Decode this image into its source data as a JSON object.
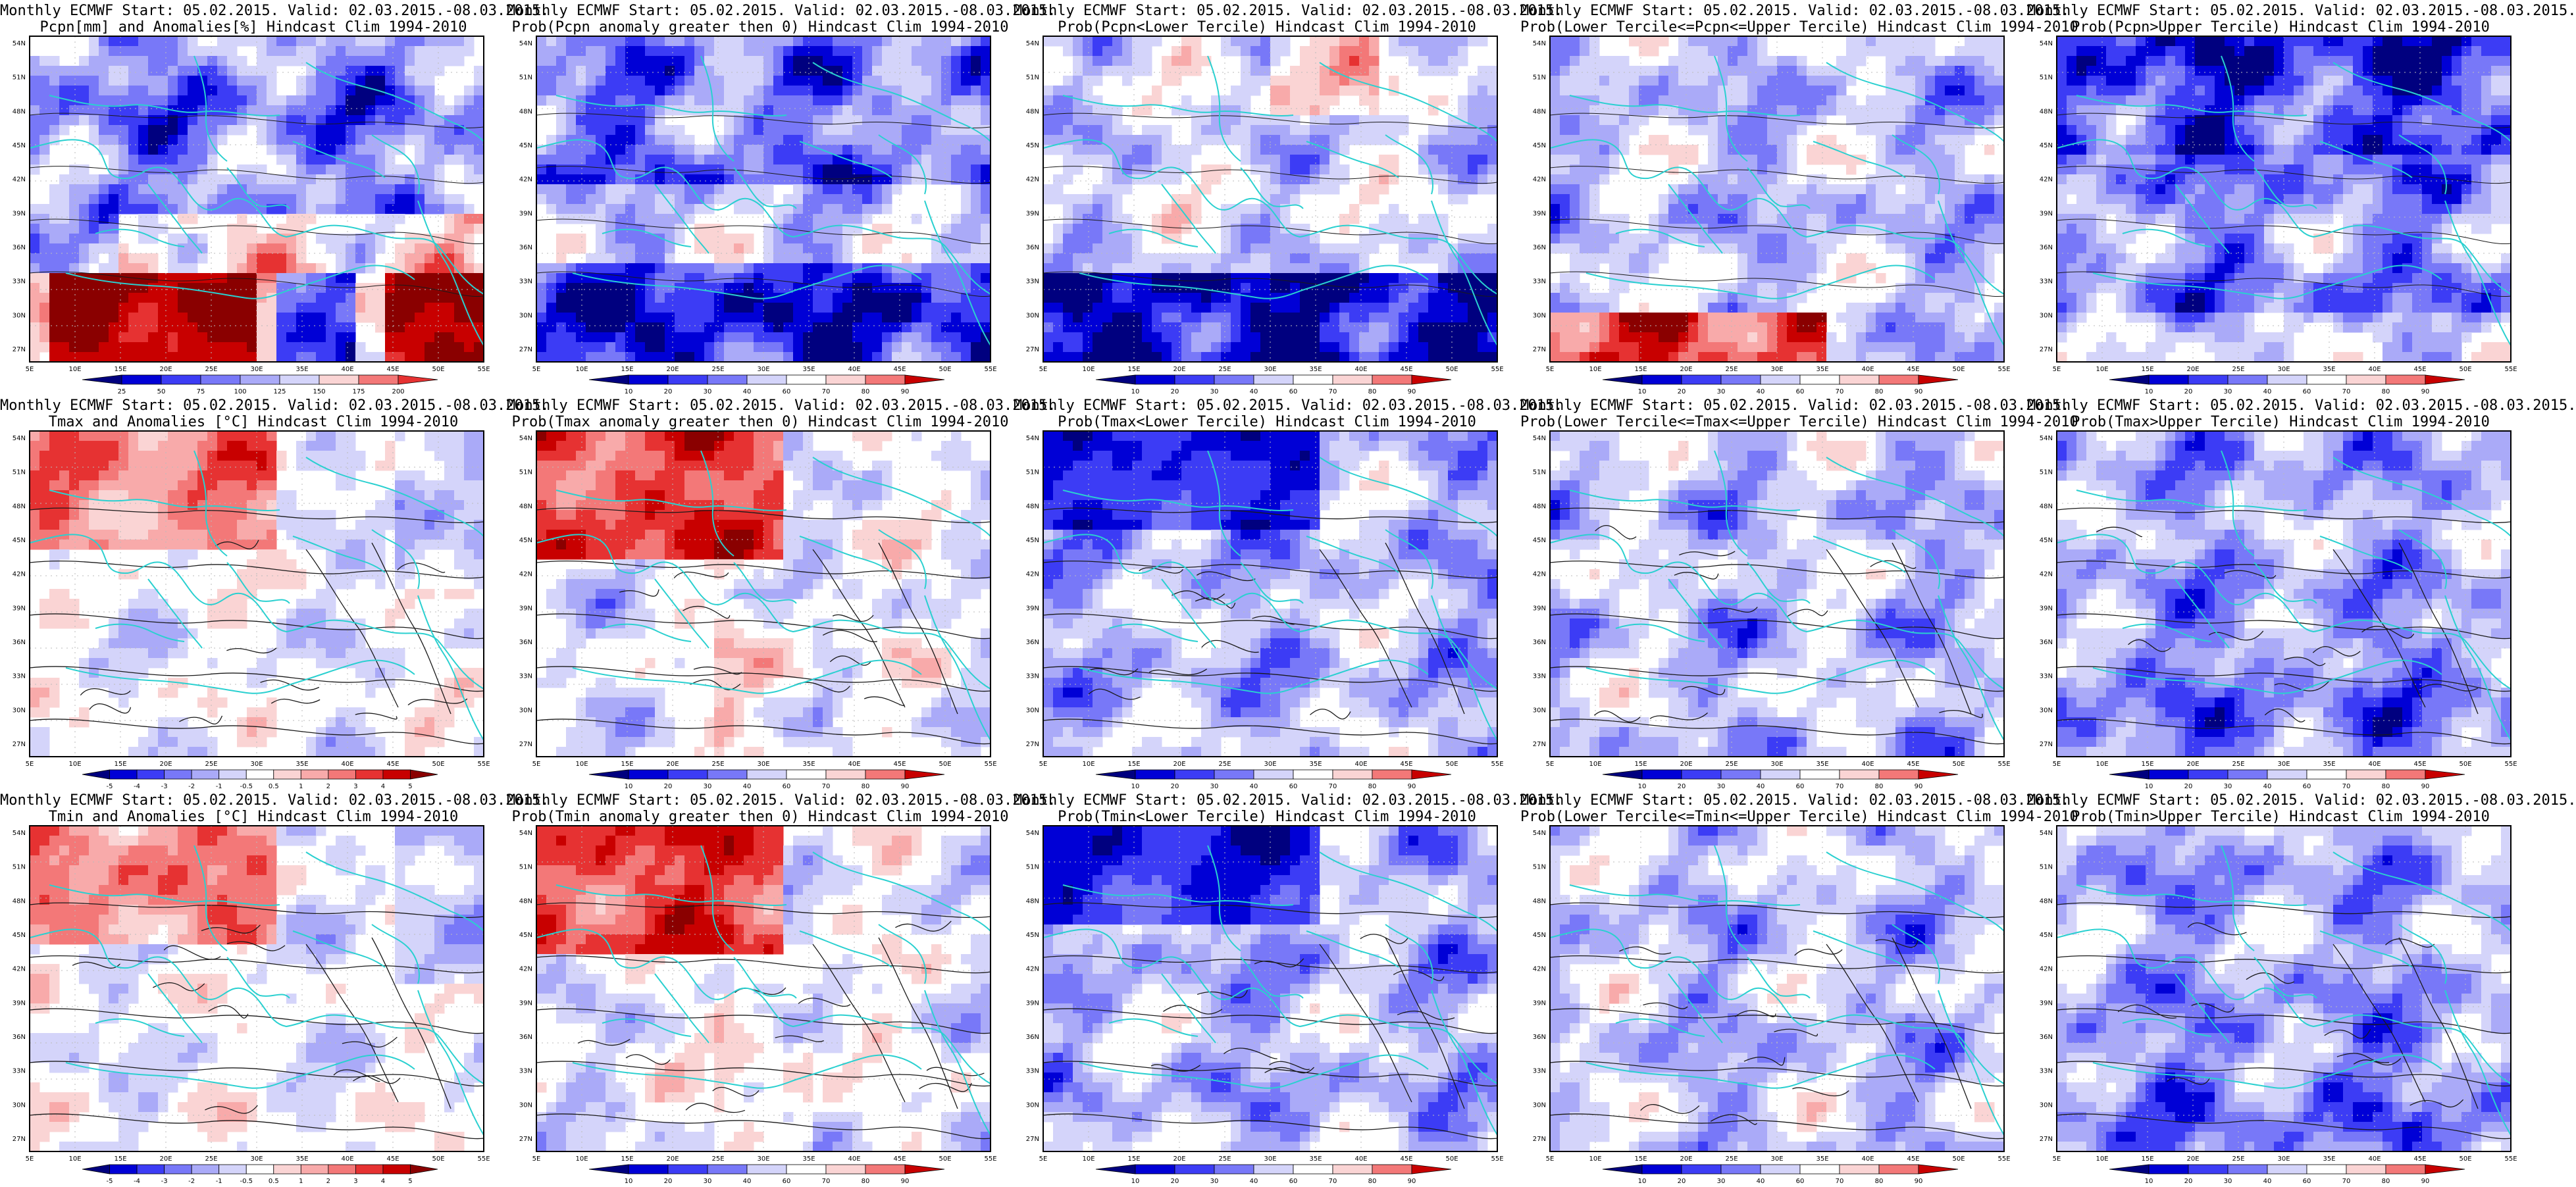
{
  "panels": [
    {
      "id": "p11",
      "title1": "Monthly ECMWF Start: 05.02.2015. Valid: 02.03.2015.-08.03.2015.",
      "title2": "Pcpn[mm] and Anomalies[%] Hindcast Clim 1994-2010",
      "colorbar": [
        "25",
        "50",
        "75",
        "100",
        "125",
        "150",
        "175",
        "200"
      ],
      "mode": "pcpn-anom"
    },
    {
      "id": "p12",
      "title1": "Monthly ECMWF Start: 05.02.2015. Valid: 02.03.2015.-08.03.2015.",
      "title2": "Prob(Pcpn anomaly greater then 0) Hindcast Clim 1994-2010",
      "colorbar": [
        "10",
        "20",
        "30",
        "40",
        "60",
        "70",
        "80",
        "90"
      ],
      "mode": "pcpn-gt0"
    },
    {
      "id": "p13",
      "title1": "Monthly ECMWF Start: 05.02.2015. Valid: 02.03.2015.-08.03.2015.",
      "title2": "Prob(Pcpn<Lower Tercile) Hindcast Clim 1994-2010",
      "colorbar": [
        "10",
        "20",
        "30",
        "40",
        "60",
        "70",
        "80",
        "90"
      ],
      "mode": "pcpn-lower"
    },
    {
      "id": "p14",
      "title1": "Monthly ECMWF Start: 05.02.2015. Valid: 02.03.2015.-08.03.2015.",
      "title2": "Prob(Lower Tercile<=Pcpn<=Upper Tercile) Hindcast Clim 1994-2010",
      "colorbar": [
        "10",
        "20",
        "30",
        "40",
        "60",
        "70",
        "80",
        "90"
      ],
      "mode": "pcpn-mid"
    },
    {
      "id": "p15",
      "title1": "Monthly ECMWF Start: 05.02.2015. Valid: 02.03.2015.-08.03.2015.",
      "title2": "Prob(Pcpn>Upper Tercile) Hindcast Clim 1994-2010",
      "colorbar": [
        "10",
        "20",
        "30",
        "40",
        "60",
        "70",
        "80",
        "90"
      ],
      "mode": "pcpn-upper"
    },
    {
      "id": "p21",
      "title1": "Monthly ECMWF Start: 05.02.2015. Valid: 02.03.2015.-08.03.2015.",
      "title2": "Tmax and Anomalies [°C] Hindcast Clim 1994-2010",
      "colorbar": [
        "-5",
        "-4",
        "-3",
        "-2",
        "-1",
        "-0.5",
        "0.5",
        "1",
        "2",
        "3",
        "4",
        "5"
      ],
      "mode": "tmax-anom"
    },
    {
      "id": "p22",
      "title1": "Monthly ECMWF Start: 05.02.2015. Valid: 02.03.2015.-08.03.2015.",
      "title2": "Prob(Tmax anomaly greater then 0) Hindcast Clim 1994-2010",
      "colorbar": [
        "10",
        "20",
        "30",
        "40",
        "60",
        "70",
        "80",
        "90"
      ],
      "mode": "tmax-gt0"
    },
    {
      "id": "p23",
      "title1": "Monthly ECMWF Start: 05.02.2015. Valid: 02.03.2015.-08.03.2015.",
      "title2": "Prob(Tmax<Lower Tercile) Hindcast Clim 1994-2010",
      "colorbar": [
        "10",
        "20",
        "30",
        "40",
        "60",
        "70",
        "80",
        "90"
      ],
      "mode": "tmax-lower"
    },
    {
      "id": "p24",
      "title1": "Monthly ECMWF Start: 05.02.2015. Valid: 02.03.2015.-08.03.2015.",
      "title2": "Prob(Lower Tercile<=Tmax<=Upper Tercile) Hindcast Clim 1994-2010",
      "colorbar": [
        "10",
        "20",
        "30",
        "40",
        "60",
        "70",
        "80",
        "90"
      ],
      "mode": "tmax-mid"
    },
    {
      "id": "p25",
      "title1": "Monthly ECMWF Start: 05.02.2015. Valid: 02.03.2015.-08.03.2015.",
      "title2": "Prob(Tmax>Upper Tercile) Hindcast Clim 1994-2010",
      "colorbar": [
        "10",
        "20",
        "30",
        "40",
        "60",
        "70",
        "80",
        "90"
      ],
      "mode": "tmax-upper"
    },
    {
      "id": "p31",
      "title1": "Monthly ECMWF Start: 05.02.2015. Valid: 02.03.2015.-08.03.2015.",
      "title2": "Tmin and Anomalies [°C] Hindcast Clim 1994-2010",
      "colorbar": [
        "-5",
        "-4",
        "-3",
        "-2",
        "-1",
        "-0.5",
        "0.5",
        "1",
        "2",
        "3",
        "4",
        "5"
      ],
      "mode": "tmin-anom"
    },
    {
      "id": "p32",
      "title1": "Monthly ECMWF Start: 05.02.2015. Valid: 02.03.2015.-08.03.2015.",
      "title2": "Prob(Tmin anomaly greater then 0) Hindcast Clim 1994-2010",
      "colorbar": [
        "10",
        "20",
        "30",
        "40",
        "60",
        "70",
        "80",
        "90"
      ],
      "mode": "tmin-gt0"
    },
    {
      "id": "p33",
      "title1": "Monthly ECMWF Start: 05.02.2015. Valid: 02.03.2015.-08.03.2015.",
      "title2": "Prob(Tmin<Lower Tercile) Hindcast Clim 1994-2010",
      "colorbar": [
        "10",
        "20",
        "30",
        "40",
        "60",
        "70",
        "80",
        "90"
      ],
      "mode": "tmin-lower"
    },
    {
      "id": "p34",
      "title1": "Monthly ECMWF Start: 05.02.2015. Valid: 02.03.2015.-08.03.2015.",
      "title2": "Prob(Lower Tercile<=Tmin<=Upper Tercile) Hindcast Clim 1994-2010",
      "colorbar": [
        "10",
        "20",
        "30",
        "40",
        "60",
        "70",
        "80",
        "90"
      ],
      "mode": "tmin-mid"
    },
    {
      "id": "p35",
      "title1": "Monthly ECMWF Start: 05.02.2015. Valid: 02.03.2015.-08.03.2015.",
      "title2": "Prob(Tmin>Upper Tercile) Hindcast Clim 1994-2010",
      "colorbar": [
        "10",
        "20",
        "30",
        "40",
        "60",
        "70",
        "80",
        "90"
      ],
      "mode": "tmin-upper"
    }
  ],
  "axes": {
    "lon_labels": [
      "5E",
      "10E",
      "15E",
      "20E",
      "25E",
      "30E",
      "35E",
      "40E",
      "45E",
      "50E",
      "55E"
    ],
    "lat_labels": [
      "54N",
      "51N",
      "48N",
      "45N",
      "42N",
      "39N",
      "36N",
      "33N",
      "30N",
      "27N"
    ]
  },
  "palette": {
    "blues": [
      "#00007f",
      "#0000d6",
      "#3c3cf5",
      "#7878f8",
      "#aaaaf8",
      "#d4d4fa"
    ],
    "reds": [
      "#fad4d4",
      "#f8aaaa",
      "#f37878",
      "#e63232",
      "#c80000",
      "#8a0000"
    ],
    "contour": "#1a1a1a",
    "coast": "#2ad0d0"
  }
}
